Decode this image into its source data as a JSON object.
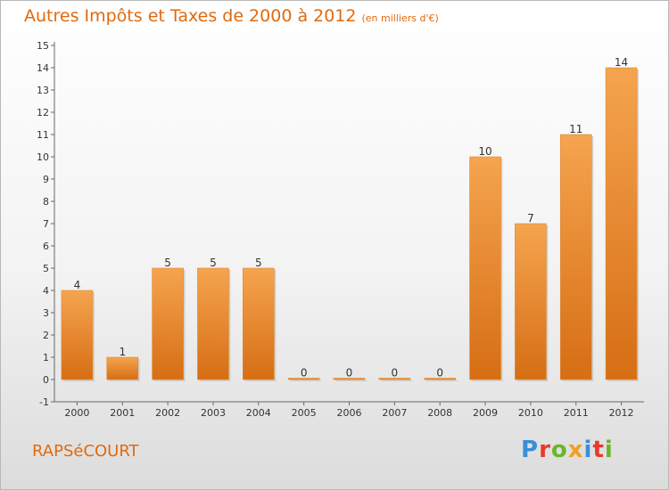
{
  "title": "Autres Impôts et Taxes de 2000 à 2012",
  "subtitle": "(en milliers d'€)",
  "commune": "RAPSéCOURT",
  "logo": {
    "text": "Proxiti",
    "letters": [
      {
        "ch": "P",
        "color": "#3a8fd8"
      },
      {
        "ch": "r",
        "color": "#e8392b"
      },
      {
        "ch": "o",
        "color": "#6bb52b"
      },
      {
        "ch": "x",
        "color": "#f0a020"
      },
      {
        "ch": "i",
        "color": "#3a8fd8"
      },
      {
        "ch": "t",
        "color": "#e8392b"
      },
      {
        "ch": "i",
        "color": "#6bb52b"
      }
    ]
  },
  "colors": {
    "accent": "#e06a10",
    "bar_top": "#f5a44f",
    "bar_bottom": "#d66e14",
    "axis_text": "#333333"
  },
  "chart_data": {
    "type": "bar",
    "categories": [
      "2000",
      "2001",
      "2002",
      "2003",
      "2004",
      "2005",
      "2006",
      "2007",
      "2008",
      "2009",
      "2010",
      "2011",
      "2012"
    ],
    "values": [
      4,
      1,
      5,
      5,
      5,
      0,
      0,
      0,
      0,
      10,
      7,
      11,
      14
    ],
    "data_labels": [
      "4",
      "1",
      "5",
      "5",
      "5",
      "0",
      "0",
      "0",
      "0",
      "10",
      "7",
      "11",
      "14"
    ],
    "y_ticks": [
      "-1",
      "0",
      "1",
      "2",
      "3",
      "4",
      "5",
      "6",
      "7",
      "8",
      "9",
      "10",
      "11",
      "12",
      "13",
      "14",
      "15"
    ],
    "ylim": [
      -1,
      15
    ],
    "grid": false,
    "legend": "none"
  }
}
